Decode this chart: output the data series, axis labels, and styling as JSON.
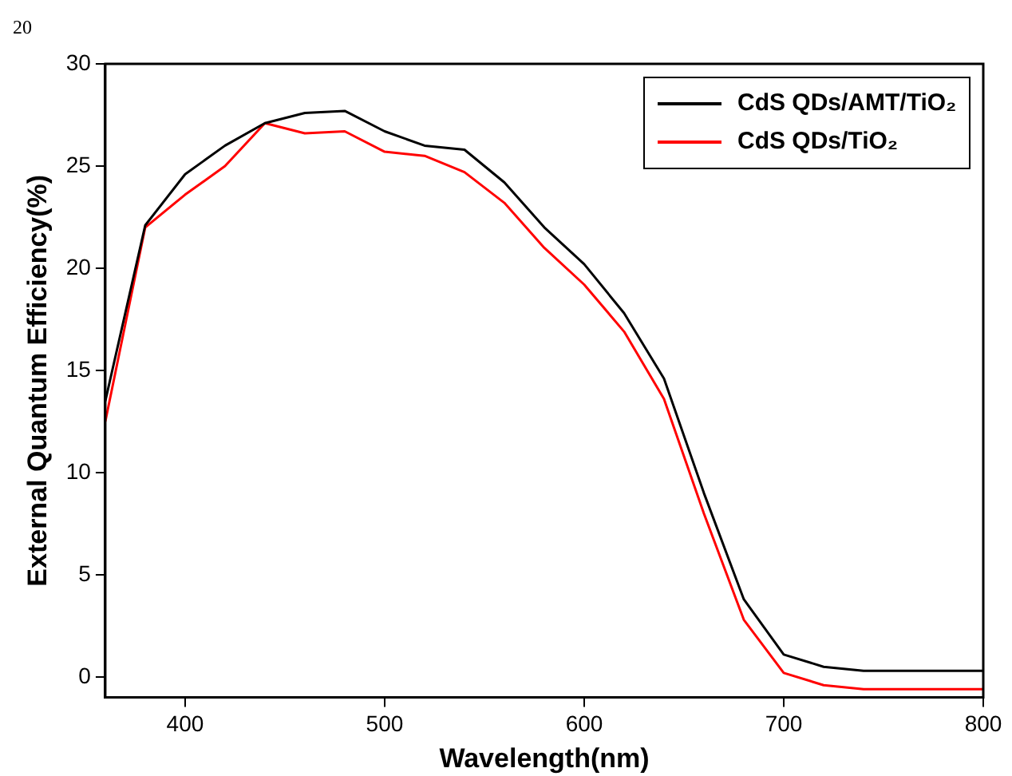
{
  "chart_data": {
    "type": "line",
    "xlabel": "Wavelength(nm)",
    "ylabel": "External Quantum Efficiency(%)",
    "annotations": [
      "20"
    ],
    "x": [
      360,
      380,
      400,
      420,
      440,
      460,
      480,
      500,
      520,
      540,
      560,
      580,
      600,
      620,
      640,
      660,
      680,
      700,
      720,
      740,
      760,
      780,
      800
    ],
    "series": [
      {
        "name": "CdS QDs/AMT/TiO₂",
        "color": "#000000",
        "values": [
          13.5,
          22.1,
          24.6,
          26,
          27.1,
          27.6,
          27.7,
          26.7,
          26,
          25.8,
          24.2,
          22,
          20.2,
          17.8,
          14.6,
          9,
          3.8,
          1.1,
          0.5,
          0.3,
          0.3,
          0.3,
          0.3
        ]
      },
      {
        "name": "CdS QDs/TiO₂",
        "color": "#ff0000",
        "values": [
          12.5,
          22,
          23.6,
          25,
          27.1,
          26.6,
          26.7,
          25.7,
          25.5,
          24.7,
          23.2,
          21,
          19.2,
          16.9,
          13.6,
          8,
          2.8,
          0.2,
          -0.4,
          -0.6,
          -0.6,
          -0.6,
          -0.6
        ]
      }
    ],
    "xlim": [
      360,
      800
    ],
    "xticks": [
      400,
      500,
      600,
      700,
      800
    ],
    "ylim": [
      -1,
      30
    ],
    "yticks": [
      0,
      5,
      10,
      15,
      20,
      25,
      30
    ],
    "grid": false,
    "legend": "top right",
    "marker": "none",
    "line_style": "solid"
  }
}
